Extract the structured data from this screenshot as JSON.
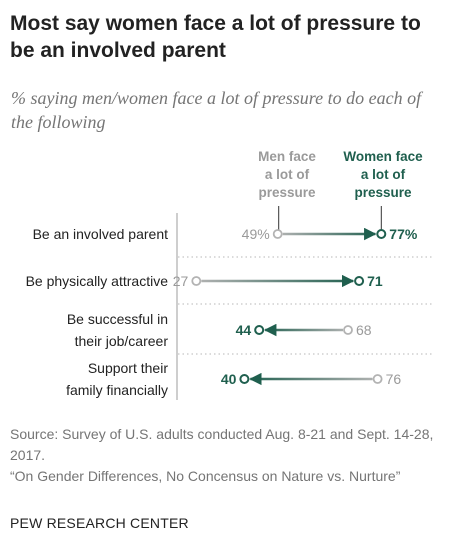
{
  "header": {
    "title": "Most say women face a lot of pressure to be an involved parent",
    "subtitle": "% saying men/women face a lot of pressure to do each of the following"
  },
  "legend": {
    "men": [
      "Men face",
      "a lot of",
      "pressure"
    ],
    "women": [
      "Women face",
      "a lot of",
      "pressure"
    ]
  },
  "colors": {
    "men": "#b3b3b3",
    "women": "#1f5f4e",
    "men_text": "#9a9a9a",
    "label_text": "#222222",
    "divider": "#cfcfcf",
    "axis": "#bdbdbd"
  },
  "chart_data": {
    "type": "dot",
    "categories": [
      [
        "Be an involved parent"
      ],
      [
        "Be physically attractive"
      ],
      [
        "Be successful in",
        "their job/career"
      ],
      [
        "Support their",
        "family financially"
      ]
    ],
    "series": [
      {
        "name": "Men face a lot of pressure",
        "values": [
          49,
          27,
          68,
          76
        ],
        "labels": [
          "49%",
          "27",
          "68",
          "76"
        ]
      },
      {
        "name": "Women face a lot of pressure",
        "values": [
          77,
          71,
          44,
          40
        ],
        "labels": [
          "77%",
          "71",
          "44",
          "40"
        ]
      }
    ]
  },
  "footer": {
    "source": "Source: Survey of U.S. adults conducted Aug. 8-21 and Sept. 14-28, 2017.",
    "report": "“On Gender Differences, No Concensus on Nature vs. Nurture”",
    "org": "PEW RESEARCH CENTER"
  }
}
